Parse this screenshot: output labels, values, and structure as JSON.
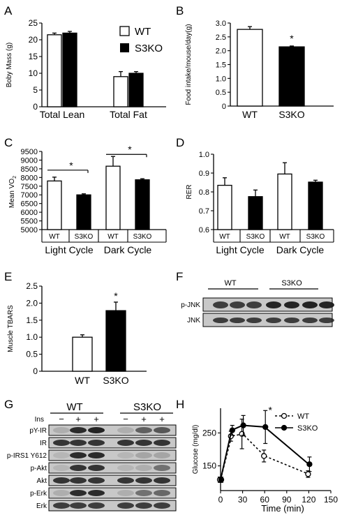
{
  "chart_data": [
    {
      "panel": "A",
      "type": "bar",
      "ylabel": "Boby Mass (g)",
      "ylim": [
        0,
        25
      ],
      "yticks": [
        "0",
        "5",
        "10",
        "15",
        "20",
        "25"
      ],
      "categories": [
        "Total Lean",
        "Total Fat"
      ],
      "legend": {
        "position": "top-right",
        "entries": [
          "WT",
          "S3KO"
        ]
      },
      "series": [
        {
          "name": "WT",
          "values": [
            21.5,
            9.0
          ],
          "errors": [
            0.5,
            1.5
          ]
        },
        {
          "name": "S3KO",
          "values": [
            22.0,
            10.0
          ],
          "errors": [
            0.5,
            0.5
          ]
        }
      ]
    },
    {
      "panel": "B",
      "type": "bar",
      "ylabel": "Food intake/mouse/day(g)",
      "ylim": [
        0,
        3.0
      ],
      "yticks": [
        "0",
        "0.5",
        "1.0",
        "1.5",
        "2.0",
        "2.5",
        "3.0"
      ],
      "categories": [
        "WT",
        "S3KO"
      ],
      "values": [
        2.77,
        2.14
      ],
      "errors": [
        0.1,
        0.03
      ],
      "annotation": "*"
    },
    {
      "panel": "C",
      "type": "bar",
      "ylabel": "Mean VO2",
      "ylim": [
        5000,
        9500
      ],
      "yticks": [
        "5000",
        "5500",
        "6000",
        "6500",
        "7000",
        "7500",
        "8000",
        "8500",
        "9000",
        "9500"
      ],
      "groups": [
        "Light Cycle",
        "Dark Cycle"
      ],
      "bar_labels": [
        "WT",
        "S3KO",
        "WT",
        "S3KO"
      ],
      "values": [
        7800,
        7000,
        8650,
        7870
      ],
      "errors": [
        220,
        60,
        560,
        60
      ],
      "annotation": "*"
    },
    {
      "panel": "D",
      "type": "bar",
      "ylabel": "RER",
      "ylim": [
        0.6,
        1.0
      ],
      "yticks": [
        "0.6",
        "0.7",
        "0.8",
        "0.9",
        "1.0"
      ],
      "groups": [
        "Light Cycle",
        "Dark Cycle"
      ],
      "bar_labels": [
        "WT",
        "S3KO",
        "WT",
        "S3KO"
      ],
      "values": [
        0.835,
        0.775,
        0.895,
        0.852
      ],
      "errors": [
        0.04,
        0.035,
        0.06,
        0.01
      ]
    },
    {
      "panel": "E",
      "type": "bar",
      "ylabel": "Muscle TBARS",
      "ylim": [
        0,
        2.5
      ],
      "yticks": [
        "0",
        "0.5",
        "1.0",
        "1.5",
        "2.0",
        "2.5"
      ],
      "categories": [
        "WT",
        "S3KO"
      ],
      "values": [
        1.0,
        1.78
      ],
      "errors": [
        0.07,
        0.25
      ],
      "annotation": "*"
    },
    {
      "panel": "H",
      "type": "line",
      "xlabel": "Time (min)",
      "ylabel": "Glucose (mg/dl)",
      "xlim": [
        0,
        150
      ],
      "ylim": [
        75,
        325
      ],
      "xticks": [
        "0",
        "30",
        "60",
        "90",
        "120",
        "150"
      ],
      "yticks": [
        "150",
        "250"
      ],
      "legend": {
        "position": "top-right",
        "entries": [
          "WT",
          "S3KO"
        ]
      },
      "x": [
        0,
        15,
        30,
        60,
        120
      ],
      "series": [
        {
          "name": "WT",
          "values": [
            108,
            240,
            247,
            180,
            125
          ],
          "errors": [
            8,
            15,
            45,
            18,
            10
          ]
        },
        {
          "name": "S3KO",
          "values": [
            108,
            258,
            273,
            268,
            155
          ],
          "errors": [
            8,
            15,
            30,
            50,
            22
          ]
        }
      ],
      "annotation": "*"
    }
  ],
  "panels": {
    "A": {
      "label": "A",
      "legend_wt": "WT",
      "legend_ko": "S3KO"
    },
    "B": {
      "label": "B",
      "star": "*"
    },
    "C": {
      "label": "C",
      "ylabel_main": "Mean VO",
      "ylabel_sub": "2",
      "star1": "*",
      "star2": "*"
    },
    "D": {
      "label": "D"
    },
    "E": {
      "label": "E",
      "star": "*"
    },
    "F": {
      "label": "F",
      "group_wt": "WT",
      "group_ko": "S3KO",
      "rows": [
        "p-JNK",
        "JNK"
      ]
    },
    "G": {
      "label": "G",
      "group_wt": "WT",
      "group_ko": "S3KO",
      "ins_label": "Ins",
      "ins_marks": [
        "−",
        "+",
        "+",
        "−",
        "+",
        "+"
      ],
      "rows": [
        "pY-IR",
        "IR",
        "p-IRS1 Y612",
        "p-Akt",
        "Akt",
        "p-Erk",
        "Erk"
      ]
    },
    "H": {
      "label": "H",
      "star": "*"
    }
  },
  "colors": {
    "wt_fill": "#ffffff",
    "ko_fill": "#000000",
    "blot_bg": "#c8c8c8",
    "band": "#1a1a1a"
  }
}
